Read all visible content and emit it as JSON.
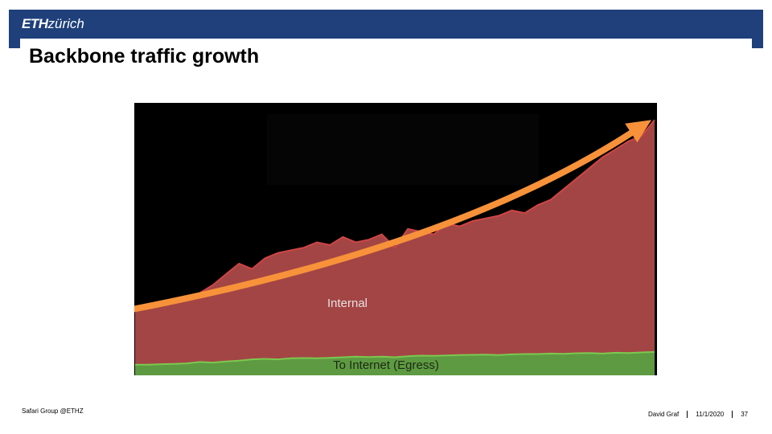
{
  "header": {
    "logo_eth": "ETH",
    "logo_zurich": "zürich",
    "brand_color": "#1f407a"
  },
  "slide": {
    "title": "Backbone traffic growth"
  },
  "chart_data": {
    "type": "area",
    "title": "",
    "xlabel": "",
    "ylabel": "",
    "grid": false,
    "legend": "none",
    "ylim": [
      0,
      100
    ],
    "x": [
      0,
      1,
      2,
      3,
      4,
      5,
      6,
      7,
      8,
      9,
      10,
      11,
      12,
      13,
      14,
      15,
      16,
      17,
      18,
      19,
      20,
      21,
      22,
      23,
      24,
      25,
      26,
      27,
      28,
      29,
      30,
      31,
      32,
      33,
      34,
      35,
      36,
      37,
      38,
      39,
      40
    ],
    "series": [
      {
        "name": "Internal",
        "color": "#a34545",
        "values": [
          25,
          26,
          27,
          28,
          29,
          31,
          34,
          38,
          42,
          40,
          44,
          46,
          47,
          48,
          50,
          49,
          52,
          50,
          51,
          53,
          48,
          55,
          54,
          53,
          57,
          56,
          58,
          59,
          60,
          62,
          61,
          64,
          66,
          70,
          74,
          78,
          82,
          85,
          88,
          90,
          96
        ]
      },
      {
        "name": "To Internet (Egress)",
        "color": "#5e9a42",
        "values": [
          4,
          4,
          4.2,
          4.3,
          4.5,
          5,
          4.8,
          5.2,
          5.5,
          6,
          6.2,
          6,
          6.4,
          6.5,
          6.4,
          6.6,
          6.8,
          7,
          6.9,
          7,
          6.8,
          7.2,
          7.4,
          7.3,
          7.5,
          7.6,
          7.7,
          7.8,
          7.6,
          7.9,
          8,
          8,
          8.2,
          8.1,
          8.3,
          8.4,
          8.2,
          8.5,
          8.4,
          8.6,
          8.8
        ]
      }
    ],
    "annotations": [
      {
        "text": "Internal",
        "series": "Internal"
      },
      {
        "text": "To Internet (Egress)",
        "series": "To Internet (Egress)"
      },
      {
        "type": "trend-arrow",
        "color": "#f7923a",
        "from": [
          0,
          25
        ],
        "to": [
          40,
          96
        ]
      }
    ]
  },
  "footer": {
    "left": "Safari Group @ETHZ",
    "author": "David Graf",
    "date": "11/1/2020",
    "page": "37"
  }
}
